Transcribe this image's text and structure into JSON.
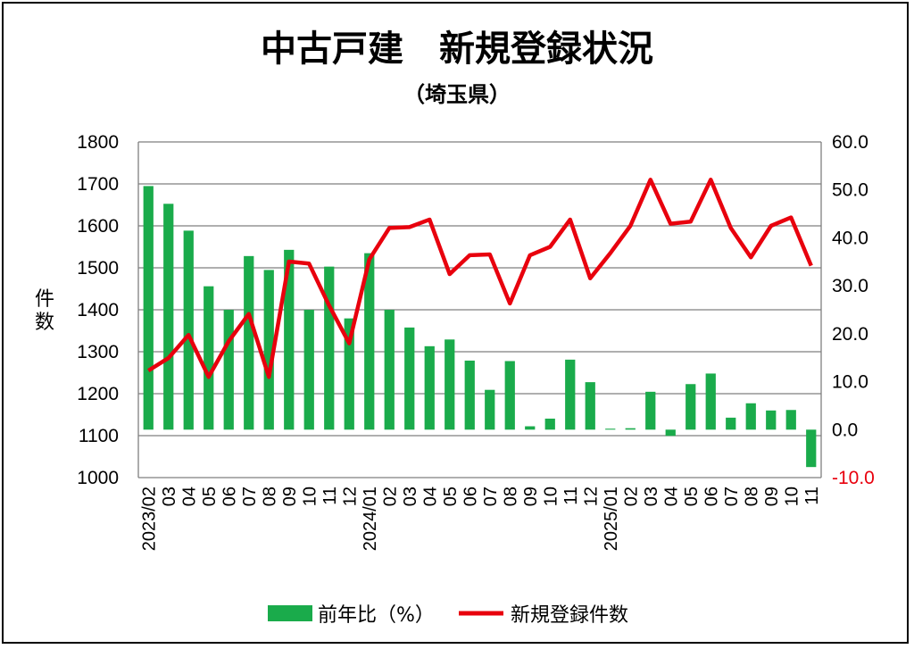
{
  "title": "中古戸建　新規登録状況",
  "subtitle": "（埼玉県）",
  "colors": {
    "bar": "#1aab4b",
    "line": "#e8000d",
    "grid": "#7f7f7f",
    "negative_tick": "#e8000d"
  },
  "chart_data": {
    "type": "bar+line",
    "title": "中古戸建　新規登録状況",
    "subtitle": "（埼玉県）",
    "ylabel_left": "件数",
    "ylim_left": [
      1000,
      1800
    ],
    "yticks_left": [
      "1000",
      "1100",
      "1200",
      "1300",
      "1400",
      "1500",
      "1600",
      "1700",
      "1800"
    ],
    "ylim_right": [
      -10,
      60
    ],
    "yticks_right": [
      "-10.0",
      "0.0",
      "10.0",
      "20.0",
      "30.0",
      "40.0",
      "50.0",
      "60.0"
    ],
    "categories": [
      "2023/02",
      "03",
      "04",
      "05",
      "06",
      "07",
      "08",
      "09",
      "10",
      "11",
      "12",
      "2024/01",
      "02",
      "03",
      "04",
      "05",
      "06",
      "07",
      "08",
      "09",
      "10",
      "11",
      "12",
      "2025/01",
      "02",
      "03",
      "04",
      "05",
      "06",
      "07",
      "08",
      "09",
      "10",
      "11"
    ],
    "series": [
      {
        "name": "前年比（%）",
        "type": "bar",
        "axis": "right",
        "values": [
          50.8,
          47.1,
          41.5,
          29.9,
          25.0,
          36.2,
          33.3,
          37.5,
          25.0,
          34.0,
          23.2,
          36.8,
          25.0,
          21.3,
          17.4,
          18.8,
          14.4,
          8.3,
          14.3,
          0.7,
          2.3,
          14.6,
          9.9,
          0.2,
          0.3,
          7.9,
          -1.3,
          9.5,
          11.7,
          2.5,
          5.5,
          4.0,
          4.1,
          -7.8
        ]
      },
      {
        "name": "新規登録件数",
        "type": "line",
        "axis": "left",
        "values": [
          1255,
          1285,
          1340,
          1240,
          1325,
          1390,
          1240,
          1515,
          1510,
          1410,
          1320,
          1520,
          1595,
          1597,
          1615,
          1485,
          1530,
          1532,
          1415,
          1530,
          1550,
          1615,
          1475,
          1535,
          1600,
          1710,
          1605,
          1610,
          1710,
          1595,
          1525,
          1600,
          1620,
          1505
        ]
      }
    ],
    "grid": true,
    "legend": "bottom"
  }
}
